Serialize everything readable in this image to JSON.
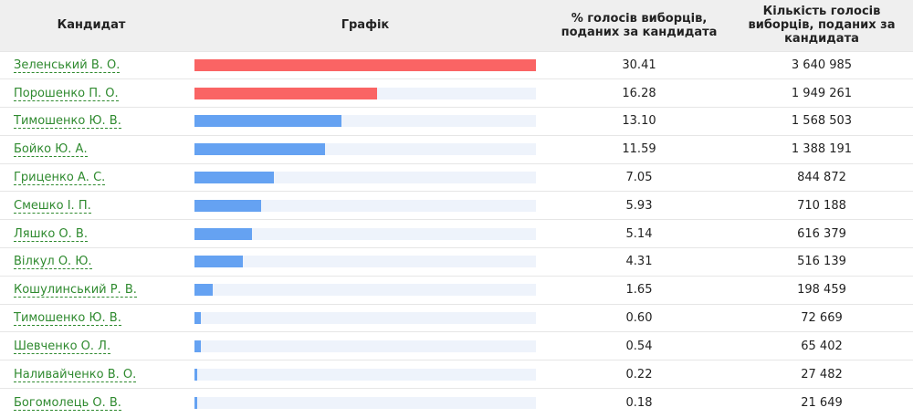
{
  "table": {
    "headers": {
      "candidate": "Кандидат",
      "chart": "Графік",
      "percent": "% голосів виборців, поданих за кандидата",
      "votes": "Кількість голосів виборців, поданих за кандидата"
    }
  },
  "colors": {
    "leader": "#fa6464",
    "other": "#65a2f2",
    "track": "#eef3fb"
  },
  "chart_data": {
    "type": "bar",
    "categories": [
      "Зеленський В. О.",
      "Порошенко П. О.",
      "Тимошенко Ю. В.",
      "Бойко Ю. А.",
      "Гриценко А. С.",
      "Смешко І. П.",
      "Ляшко О. В.",
      "Вілкул О. Ю.",
      "Кошулинський Р. В.",
      "Тимошенко Ю. В.",
      "Шевченко О. Л.",
      "Наливайченко В. О.",
      "Богомолець О. В."
    ],
    "percent_labels": [
      "30.41",
      "16.28",
      "13.10",
      "11.59",
      "7.05",
      "5.93",
      "5.14",
      "4.31",
      "1.65",
      "0.60",
      "0.54",
      "0.22",
      "0.18"
    ],
    "values": [
      30.41,
      16.28,
      13.1,
      11.59,
      7.05,
      5.93,
      5.14,
      4.31,
      1.65,
      0.6,
      0.54,
      0.22,
      0.18
    ],
    "votes": [
      "3 640 985",
      "1 949 261",
      "1 568 503",
      "1 388 191",
      "844 872",
      "710 188",
      "616 379",
      "516 139",
      "198 459",
      "72 669",
      "65 402",
      "27 482",
      "21 649"
    ],
    "highlighted": [
      true,
      true,
      false,
      false,
      false,
      false,
      false,
      false,
      false,
      false,
      false,
      false,
      false
    ],
    "xlim": [
      0,
      30.41
    ],
    "title": "",
    "xlabel": "",
    "ylabel": ""
  }
}
